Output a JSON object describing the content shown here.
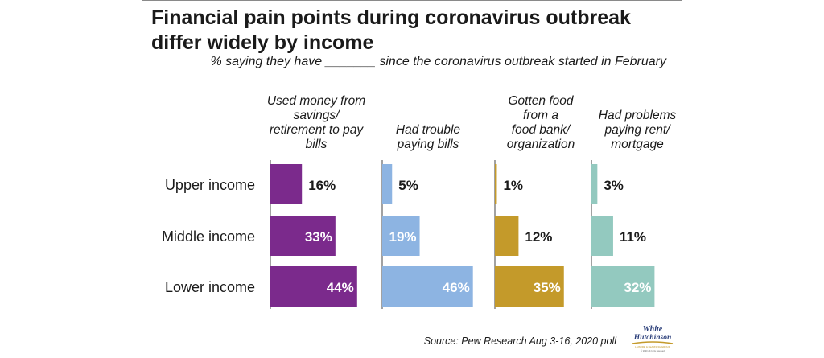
{
  "title": "Financial pain points during coronavirus outbreak differ widely by income",
  "subtitle": "% saying they have _______ since the coronavirus outbreak started in February",
  "source": "Source: Pew Research Aug 3-16, 2020 poll",
  "logo": {
    "line1": "White",
    "line2": "Hutchinson",
    "tagline": "LEISURE & LEARNING GROUP",
    "rights": "© 2020 all rights reserved"
  },
  "chart_data": {
    "type": "bar",
    "orientation": "horizontal",
    "categories": [
      "Upper income",
      "Middle income",
      "Lower income"
    ],
    "value_suffix": "%",
    "series": [
      {
        "name": "Used money from savings/ retirement to pay bills",
        "name_lines": [
          "Used money from",
          "savings/",
          "retirement to pay",
          "bills"
        ],
        "color": "#7b2a8c",
        "values": [
          16,
          33,
          44
        ]
      },
      {
        "name": "Had trouble paying bills",
        "name_lines": [
          "Had trouble",
          "paying bills"
        ],
        "color": "#8db4e2",
        "values": [
          5,
          19,
          46
        ]
      },
      {
        "name": "Gotten food from a food bank/ organization",
        "name_lines": [
          "Gotten food",
          "from a",
          "food bank/",
          "organization"
        ],
        "color": "#c49a2a",
        "values": [
          1,
          12,
          35
        ]
      },
      {
        "name": "Had problems paying rent/ mortgage",
        "name_lines": [
          "Had problems",
          "paying rent/",
          "mortgage"
        ],
        "color": "#93c9bf",
        "values": [
          3,
          11,
          32
        ]
      }
    ]
  }
}
